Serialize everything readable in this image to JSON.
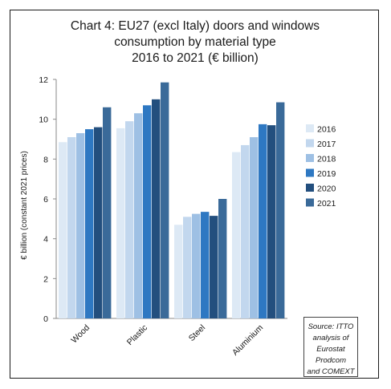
{
  "chart_data": {
    "type": "bar",
    "title_lines": [
      "Chart 4: EU27 (excl Italy) doors and windows",
      "consumption by material type",
      "2016 to 2021 (€ billion)"
    ],
    "xlabel": "",
    "ylabel": "€ billion (constant 2021 prices)",
    "ylim": [
      0,
      12
    ],
    "yticks": [
      0,
      2,
      4,
      6,
      8,
      10,
      12
    ],
    "grid": false,
    "legend_position": "right",
    "categories": [
      "Wood",
      "Plastic",
      "Steel",
      "Aluminium"
    ],
    "series": [
      {
        "name": "2016",
        "color": "#dde9f5",
        "values": [
          8.85,
          9.55,
          4.7,
          8.35
        ]
      },
      {
        "name": "2017",
        "color": "#c2d7ee",
        "values": [
          9.1,
          9.9,
          5.1,
          8.7
        ]
      },
      {
        "name": "2018",
        "color": "#9ec0e4",
        "values": [
          9.3,
          10.3,
          5.25,
          9.1
        ]
      },
      {
        "name": "2019",
        "color": "#2e78c2",
        "values": [
          9.5,
          10.7,
          5.35,
          9.75
        ]
      },
      {
        "name": "2020",
        "color": "#234f7e",
        "values": [
          9.6,
          11.0,
          5.15,
          9.7
        ]
      },
      {
        "name": "2021",
        "color": "#3a6a99",
        "values": [
          10.6,
          11.85,
          6.0,
          10.85
        ]
      }
    ]
  },
  "source_note": [
    "Source: ITTO",
    "analysis of",
    "Eurostat Prodcom",
    "and COMEXT"
  ]
}
